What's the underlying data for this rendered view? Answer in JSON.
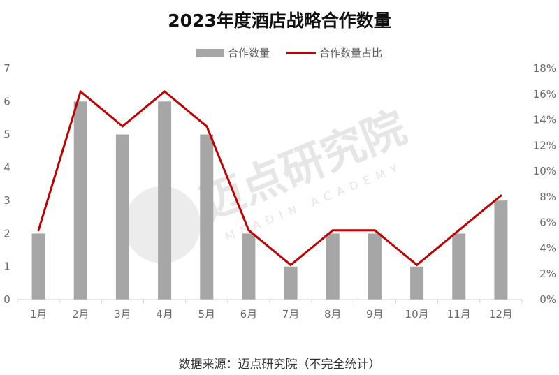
{
  "chart_data": {
    "type": "bar",
    "title": "2023年度酒店战略合作数量",
    "categories": [
      "1月",
      "2月",
      "3月",
      "4月",
      "5月",
      "6月",
      "7月",
      "8月",
      "9月",
      "10月",
      "11月",
      "12月"
    ],
    "series": [
      {
        "name": "合作数量",
        "type": "bar",
        "axis": "left",
        "color": "#a6a6a6",
        "values": [
          2,
          6,
          5,
          6,
          5,
          2,
          1,
          2,
          2,
          1,
          2,
          3
        ]
      },
      {
        "name": "合作数量占比",
        "type": "line",
        "axis": "right",
        "color": "#c00000",
        "values": [
          5.4,
          16.2,
          13.5,
          16.2,
          13.5,
          5.4,
          2.7,
          5.4,
          5.4,
          2.7,
          5.4,
          8.1
        ]
      }
    ],
    "y_left": {
      "min": 0,
      "max": 7,
      "step": 1,
      "ticks": [
        "0",
        "1",
        "2",
        "3",
        "4",
        "5",
        "6",
        "7"
      ]
    },
    "y_right": {
      "min": 0,
      "max": 18,
      "step": 2,
      "ticks": [
        "0%",
        "2%",
        "4%",
        "6%",
        "8%",
        "10%",
        "12%",
        "14%",
        "16%",
        "18%"
      ]
    },
    "legend_position": "top-center",
    "grid": false
  },
  "source_note": "数据来源：迈点研究院（不完全统计）",
  "watermark": {
    "cn": "迈点研究院",
    "en": "MEADIN ACADEMY"
  }
}
